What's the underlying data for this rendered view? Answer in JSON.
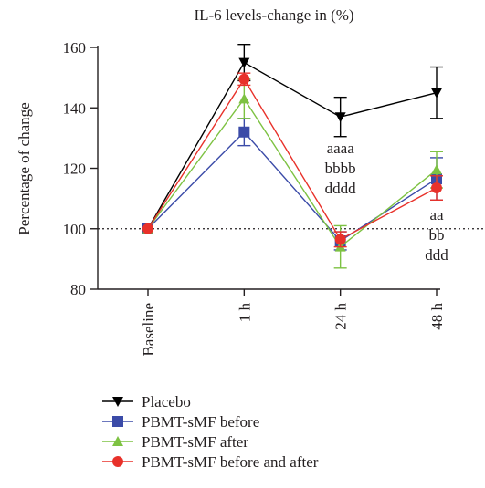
{
  "chart_data": {
    "type": "line",
    "title": "IL-6 levels-change in (%)",
    "ylabel": "Percentage of change",
    "xlabel": "",
    "categories": [
      "Baseline",
      "1 h",
      "24 h",
      "48 h"
    ],
    "ylim": [
      80,
      160
    ],
    "yticks": [
      80,
      100,
      120,
      140,
      160
    ],
    "reference_line": 100,
    "grid": false,
    "legend_position": "bottom",
    "series": [
      {
        "name": "Placebo",
        "marker": "triangle-down",
        "color": "#000000",
        "values": [
          100,
          155,
          137,
          145
        ],
        "errors": [
          0,
          6,
          6.5,
          8.5
        ]
      },
      {
        "name": "PBMT-sMF before",
        "marker": "square",
        "color": "#3b4ba8",
        "values": [
          100,
          132,
          96,
          116.5
        ],
        "errors": [
          0,
          4.5,
          3,
          7
        ]
      },
      {
        "name": "PBMT-sMF after",
        "marker": "triangle-up",
        "color": "#7dc242",
        "values": [
          100,
          143,
          94,
          119.5
        ],
        "errors": [
          0,
          6.5,
          7,
          6
        ]
      },
      {
        "name": "PBMT-sMF before and after",
        "marker": "circle",
        "color": "#e8312a",
        "values": [
          100,
          149.5,
          96.5,
          113.5
        ],
        "errors": [
          0,
          2,
          2.5,
          4
        ]
      }
    ],
    "annotations": [
      {
        "category": "24 h",
        "lines": [
          "aaaa",
          "bbbb",
          "dddd"
        ]
      },
      {
        "category": "48 h",
        "lines": [
          "aa",
          "bb",
          "ddd"
        ]
      }
    ]
  }
}
